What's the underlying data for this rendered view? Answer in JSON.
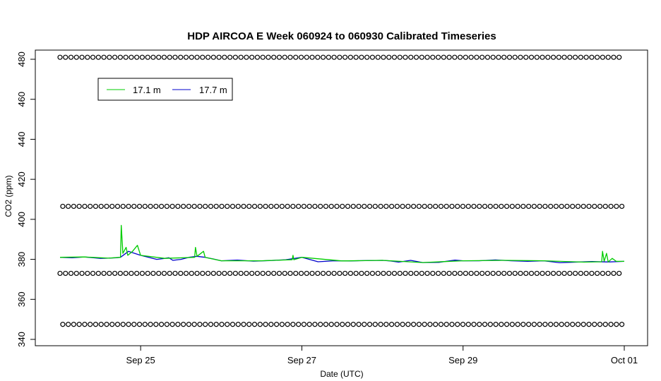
{
  "chart_data": {
    "type": "line",
    "title": "HDP AIRCOA E  Week 060924 to 060930  Calibrated Timeseries",
    "xlabel": "Date (UTC)",
    "ylabel": "CO2 (ppm)",
    "x_range_days": [
      24.0,
      31.0
    ],
    "ylim": [
      336,
      486
    ],
    "x_ticks": [
      {
        "day": 25,
        "label": "Sep 25"
      },
      {
        "day": 27,
        "label": "Sep 27"
      },
      {
        "day": 29,
        "label": "Sep 29"
      },
      {
        "day": 31,
        "label": "Oct 01"
      }
    ],
    "y_ticks": [
      340,
      360,
      380,
      400,
      420,
      440,
      460,
      480
    ],
    "grid": false,
    "legend": {
      "position": "top-left",
      "entries": [
        "17.1 m",
        "17.7 m"
      ]
    },
    "series": [
      {
        "name": "17.7 m",
        "color": "#0000cc",
        "points": [
          [
            24.0,
            381
          ],
          [
            24.15,
            380.8
          ],
          [
            24.3,
            381.2
          ],
          [
            24.5,
            380.5
          ],
          [
            24.6,
            380.6
          ],
          [
            24.7,
            380.8
          ],
          [
            24.75,
            381
          ],
          [
            24.85,
            384
          ],
          [
            25.0,
            382
          ],
          [
            25.1,
            381
          ],
          [
            25.2,
            380
          ],
          [
            25.3,
            380.5
          ],
          [
            25.35,
            380.8
          ],
          [
            25.4,
            379.5
          ],
          [
            25.5,
            380
          ],
          [
            25.6,
            381
          ],
          [
            25.7,
            381.5
          ],
          [
            25.8,
            381
          ],
          [
            25.9,
            380.2
          ],
          [
            26.0,
            379.3
          ],
          [
            26.2,
            379.6
          ],
          [
            26.4,
            379.1
          ],
          [
            26.6,
            379.4
          ],
          [
            26.8,
            379.8
          ],
          [
            27.0,
            381
          ],
          [
            27.05,
            380.5
          ],
          [
            27.2,
            378.8
          ],
          [
            27.4,
            379.3
          ],
          [
            27.6,
            379.2
          ],
          [
            27.8,
            379.4
          ],
          [
            28.0,
            379.5
          ],
          [
            28.1,
            379.2
          ],
          [
            28.2,
            378.6
          ],
          [
            28.35,
            379.5
          ],
          [
            28.5,
            378.4
          ],
          [
            28.7,
            378.5
          ],
          [
            28.9,
            379.6
          ],
          [
            29.0,
            379.3
          ],
          [
            29.2,
            379.3
          ],
          [
            29.4,
            379.7
          ],
          [
            29.6,
            379.3
          ],
          [
            29.8,
            379
          ],
          [
            30.0,
            379.3
          ],
          [
            30.2,
            378.3
          ],
          [
            30.4,
            378.6
          ],
          [
            30.6,
            378.9
          ],
          [
            30.8,
            378.7
          ],
          [
            31.0,
            379
          ]
        ]
      },
      {
        "name": "17.1 m",
        "color": "#00cc00",
        "points": [
          [
            24.0,
            381
          ],
          [
            24.3,
            381.2
          ],
          [
            24.6,
            380.6
          ],
          [
            24.75,
            381
          ],
          [
            24.76,
            397
          ],
          [
            24.78,
            383
          ],
          [
            24.82,
            386
          ],
          [
            24.84,
            382
          ],
          [
            24.9,
            384
          ],
          [
            24.96,
            387
          ],
          [
            25.0,
            382
          ],
          [
            25.3,
            380.5
          ],
          [
            25.67,
            381
          ],
          [
            25.68,
            386
          ],
          [
            25.7,
            381.5
          ],
          [
            25.78,
            384
          ],
          [
            25.8,
            381
          ],
          [
            26.0,
            379.3
          ],
          [
            26.5,
            379.3
          ],
          [
            26.88,
            379.8
          ],
          [
            26.89,
            382
          ],
          [
            26.9,
            379.8
          ],
          [
            27.0,
            381
          ],
          [
            27.5,
            379.2
          ],
          [
            28.0,
            379.5
          ],
          [
            28.5,
            378.4
          ],
          [
            29.0,
            379.3
          ],
          [
            29.5,
            379.5
          ],
          [
            30.0,
            379.3
          ],
          [
            30.5,
            378.6
          ],
          [
            30.72,
            378.8
          ],
          [
            30.73,
            384
          ],
          [
            30.75,
            379
          ],
          [
            30.78,
            383
          ],
          [
            30.8,
            378.7
          ],
          [
            30.85,
            380.5
          ],
          [
            30.9,
            379
          ],
          [
            31.0,
            379
          ]
        ]
      },
      {
        "name": "",
        "color": "#000000",
        "marker": "circle",
        "levels": [
          481,
          406.5,
          373,
          347.5
        ],
        "day_spacing": 0.068
      }
    ]
  }
}
